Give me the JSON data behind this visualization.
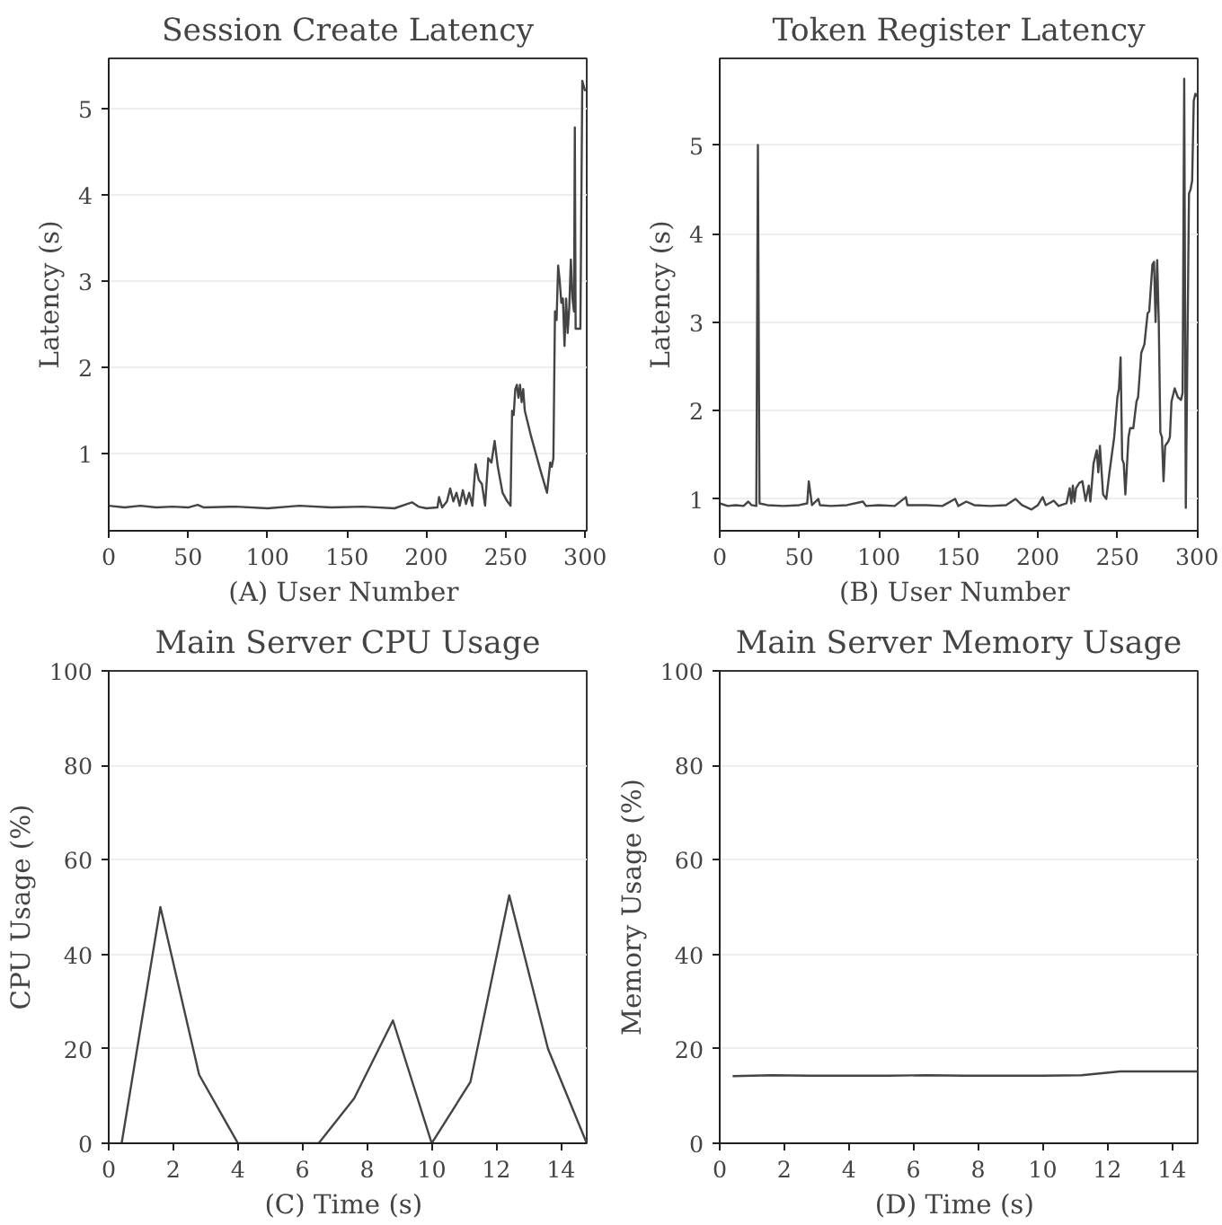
{
  "chart_data": [
    {
      "type": "line",
      "title": "Session Create Latency",
      "xlabel": "(A)  User Number",
      "ylabel": "Latency (s)",
      "xlim": [
        0,
        301
      ],
      "ylim": [
        0.11,
        5.58
      ],
      "xticks": [
        0,
        50,
        100,
        150,
        200,
        250,
        300
      ],
      "yticks": [
        1,
        2,
        3,
        4,
        5
      ],
      "grid": "y",
      "line_style": "solid",
      "series": [
        {
          "color": "#444444",
          "x": [
            0,
            10,
            20,
            30,
            40,
            50,
            56,
            60,
            80,
            100,
            120,
            140,
            160,
            180,
            188,
            191,
            195,
            200,
            207,
            208,
            210,
            213,
            215,
            217,
            219,
            221,
            223,
            225,
            227,
            229,
            231,
            233,
            235,
            237,
            239,
            241,
            243,
            245,
            248,
            251,
            253,
            254,
            255,
            256,
            257,
            258,
            259,
            260,
            261,
            262,
            266,
            272,
            276,
            278,
            279,
            280,
            281,
            282,
            283,
            284,
            285,
            286,
            287,
            288,
            289,
            290,
            291,
            292,
            293,
            293.5,
            294,
            297,
            298.2,
            300
          ],
          "values": [
            0.4,
            0.38,
            0.4,
            0.38,
            0.39,
            0.38,
            0.41,
            0.38,
            0.39,
            0.37,
            0.4,
            0.38,
            0.39,
            0.37,
            0.42,
            0.44,
            0.39,
            0.37,
            0.38,
            0.5,
            0.38,
            0.45,
            0.6,
            0.45,
            0.55,
            0.4,
            0.58,
            0.42,
            0.55,
            0.4,
            0.88,
            0.7,
            0.65,
            0.4,
            0.95,
            0.9,
            1.15,
            0.85,
            0.55,
            0.45,
            0.4,
            1.5,
            1.45,
            1.75,
            1.8,
            1.65,
            1.8,
            1.6,
            1.75,
            1.5,
            1.2,
            0.8,
            0.55,
            0.9,
            0.85,
            0.95,
            2.65,
            2.55,
            3.18,
            3.0,
            2.75,
            2.8,
            2.25,
            2.8,
            2.4,
            2.7,
            3.25,
            2.8,
            2.65,
            4.78,
            2.45,
            2.45,
            5.32,
            5.2
          ]
        }
      ]
    },
    {
      "type": "line",
      "title": "Token Register Latency",
      "xlabel": "(B)  User Number",
      "ylabel": "Latency (s)",
      "xlim": [
        0,
        300.5
      ],
      "ylim": [
        0.64,
        5.98
      ],
      "xticks": [
        0,
        50,
        100,
        150,
        200,
        250,
        300
      ],
      "yticks": [
        1,
        2,
        3,
        4,
        5
      ],
      "grid": "y",
      "line_style": "solid",
      "series": [
        {
          "color": "#444444",
          "x": [
            0,
            5,
            10,
            15,
            18,
            20,
            23,
            24,
            25,
            30,
            40,
            50,
            55,
            56,
            58,
            62,
            63,
            70,
            80,
            90,
            92,
            100,
            110,
            117,
            118,
            130,
            140,
            148,
            150,
            155,
            160,
            170,
            180,
            186,
            190,
            196,
            200,
            203,
            205,
            210,
            213,
            218,
            220,
            221,
            222,
            223,
            224,
            226,
            228,
            230,
            232,
            233,
            235,
            237,
            238,
            239,
            241,
            243,
            245,
            248,
            250,
            251,
            252,
            253,
            254,
            255,
            257,
            258,
            260,
            262,
            263,
            265,
            267,
            269,
            270,
            272,
            273,
            274,
            275,
            276,
            277,
            278,
            279,
            280,
            282,
            283,
            284,
            286,
            288,
            290,
            291,
            292,
            293,
            295,
            296,
            297,
            298,
            299,
            300
          ],
          "values": [
            0.95,
            0.92,
            0.93,
            0.92,
            0.97,
            0.93,
            0.92,
            5.0,
            0.95,
            0.93,
            0.92,
            0.93,
            0.95,
            1.2,
            0.93,
            1.0,
            0.93,
            0.92,
            0.93,
            0.97,
            0.92,
            0.93,
            0.92,
            1.02,
            0.93,
            0.93,
            0.92,
            1.0,
            0.92,
            0.97,
            0.93,
            0.92,
            0.93,
            1.0,
            0.93,
            0.88,
            0.93,
            1.02,
            0.93,
            0.98,
            0.92,
            0.95,
            1.12,
            0.95,
            1.15,
            0.97,
            1.12,
            1.18,
            1.2,
            0.98,
            1.15,
            0.97,
            1.4,
            1.55,
            1.3,
            1.6,
            1.05,
            1.0,
            1.3,
            1.7,
            2.15,
            2.25,
            2.6,
            1.45,
            1.4,
            1.05,
            1.7,
            1.8,
            1.8,
            2.1,
            2.15,
            2.65,
            2.75,
            3.1,
            3.12,
            3.65,
            3.68,
            3.0,
            3.7,
            3.0,
            1.75,
            1.7,
            1.2,
            1.6,
            1.65,
            1.7,
            2.1,
            2.25,
            2.15,
            2.12,
            2.2,
            5.75,
            0.9,
            4.45,
            4.5,
            4.6,
            5.5,
            5.58,
            5.55
          ]
        }
      ]
    },
    {
      "type": "line",
      "title": "Main Server CPU Usage",
      "xlabel": "(C)  Time (s)",
      "ylabel": "CPU Usage (%)",
      "xlim": [
        0,
        14.8
      ],
      "ylim": [
        0,
        100
      ],
      "xticks": [
        0,
        2,
        4,
        6,
        8,
        10,
        12,
        14
      ],
      "yticks": [
        0,
        20,
        40,
        60,
        80,
        100
      ],
      "grid": "y",
      "line_style": "solid",
      "series": [
        {
          "color": "#444444",
          "x": [
            0.4,
            1.6,
            2.8,
            4,
            6.5,
            7.6,
            8.8,
            10,
            11.2,
            12.4,
            13.6,
            14.8
          ],
          "values": [
            0,
            50,
            14.5,
            0,
            0,
            9.5,
            26,
            0,
            13,
            52.5,
            20,
            0
          ]
        }
      ]
    },
    {
      "type": "line",
      "title": "Main Server Memory Usage",
      "xlabel": "(D)  Time (s)",
      "ylabel": "Memory Usage (%)",
      "xlim": [
        0,
        14.8
      ],
      "ylim": [
        0,
        100
      ],
      "xticks": [
        0,
        2,
        4,
        6,
        8,
        10,
        12,
        14
      ],
      "yticks": [
        0,
        20,
        40,
        60,
        80,
        100
      ],
      "grid": "y",
      "line_style": "solid",
      "series": [
        {
          "color": "#444444",
          "x": [
            0.4,
            1.6,
            2.8,
            4,
            5.2,
            6.4,
            7.6,
            8.8,
            10,
            11.2,
            12.4,
            13.6,
            14.8
          ],
          "values": [
            14.2,
            14.4,
            14.3,
            14.3,
            14.3,
            14.4,
            14.3,
            14.3,
            14.3,
            14.4,
            15.2,
            15.2,
            15.2
          ]
        }
      ]
    }
  ]
}
